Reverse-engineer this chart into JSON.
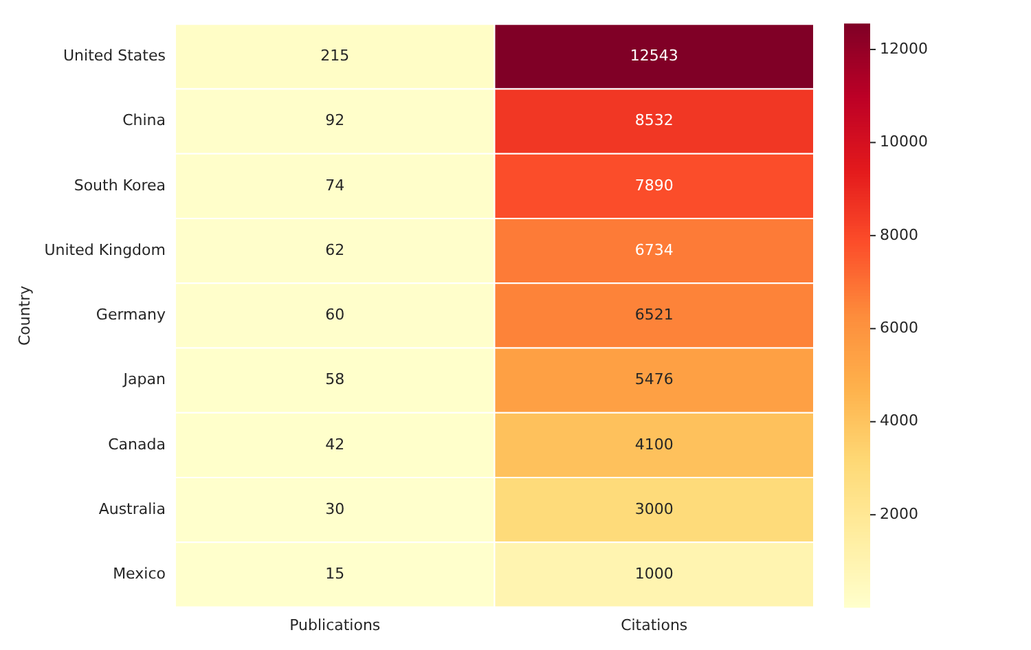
{
  "chart_data": {
    "type": "heatmap",
    "ylabel": "Country",
    "categories": [
      "Publications",
      "Citations"
    ],
    "y_categories": [
      "United States",
      "China",
      "South Korea",
      "United Kingdom",
      "Germany",
      "Japan",
      "Canada",
      "Australia",
      "Mexico"
    ],
    "cells": [
      [
        215,
        12543
      ],
      [
        92,
        8532
      ],
      [
        74,
        7890
      ],
      [
        62,
        6734
      ],
      [
        60,
        6521
      ],
      [
        58,
        5476
      ],
      [
        42,
        4100
      ],
      [
        30,
        3000
      ],
      [
        15,
        1000
      ]
    ],
    "clim": [
      15,
      12543
    ],
    "cticks": [
      2000,
      4000,
      6000,
      8000,
      10000,
      12000
    ],
    "data_labels": true
  }
}
